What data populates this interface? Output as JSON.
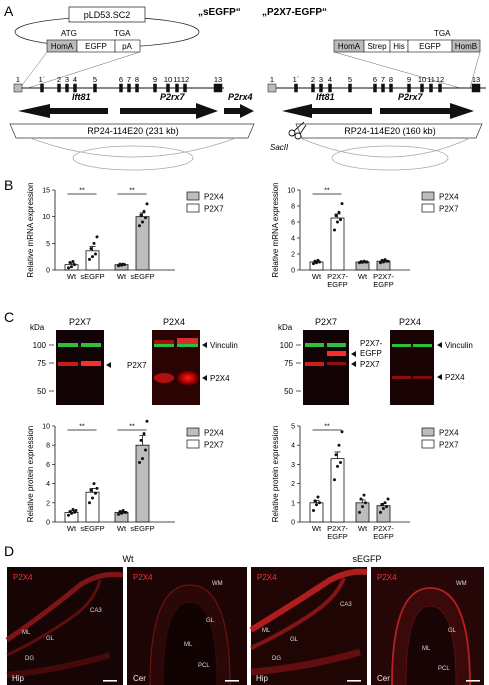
{
  "panels": {
    "A": "A",
    "B": "B",
    "C": "C",
    "D": "D"
  },
  "panelA": {
    "left": {
      "title": "„sEGFP“",
      "plasmid": "pLD53.SC2",
      "atg": "ATG",
      "tga": "TGA",
      "cassette": [
        "HomA",
        "EGFP",
        "pA"
      ],
      "exons": [
        "1",
        "1´",
        "2",
        "3",
        "4",
        "5",
        "6",
        "7",
        "8",
        "9",
        "10",
        "11",
        "12",
        "13"
      ],
      "genes": [
        "Ift81",
        "P2rx7",
        "P2rx4"
      ],
      "bac": "RP24-114E20 (231 kb)"
    },
    "right": {
      "title": "„P2X7-EGFP“",
      "tga": "TGA",
      "cassette": [
        "HomA",
        "Strep",
        "His",
        "EGFP",
        "HomB"
      ],
      "exons": [
        "1",
        "1´",
        "2",
        "3",
        "4",
        "5",
        "6",
        "7",
        "8",
        "9",
        "10",
        "11",
        "12",
        "13"
      ],
      "genes": [
        "Ift81",
        "P2rx7"
      ],
      "enzyme": "SacII",
      "bac": "RP24-114E20 (160 kb)"
    }
  },
  "panelB": {
    "left": {
      "ylabel": "Relative mRNA  expression",
      "yticks": [
        "0",
        "5",
        "10",
        "15"
      ],
      "legend": [
        "P2X4",
        "P2X7"
      ],
      "xlabels": [
        "Wt",
        "sEGFP",
        "Wt",
        "sEGFP"
      ],
      "sig": [
        "**",
        "**"
      ]
    },
    "right": {
      "ylabel": "Relative mRNA  expression",
      "yticks": [
        "0",
        "2",
        "4",
        "6",
        "8",
        "10"
      ],
      "legend": [
        "P2X4",
        "P2X7"
      ],
      "xlabels": [
        "Wt",
        "P2X7-\nEGFP",
        "Wt",
        "P2X7-\nEGFP"
      ],
      "sig": [
        "**"
      ]
    }
  },
  "panelC": {
    "blots_left": {
      "kda": "kDa",
      "markers": [
        "100",
        "75",
        "50"
      ],
      "titles": [
        "P2X7",
        "P2X4"
      ],
      "bands": [
        "Vinculin",
        "P2X7",
        "P2X4"
      ]
    },
    "blots_right": {
      "kda": "kDa",
      "markers": [
        "100",
        "75",
        "50"
      ],
      "titles": [
        "P2X7",
        "P2X4"
      ],
      "bands": [
        "Vinculin",
        "P2X7-EGFP",
        "P2X7",
        "P2X4"
      ]
    },
    "left": {
      "ylabel": "Relative protein expression",
      "yticks": [
        "0",
        "2",
        "4",
        "6",
        "8",
        "10"
      ],
      "legend": [
        "P2X4",
        "P2X7"
      ],
      "xlabels": [
        "Wt",
        "sEGFP",
        "Wt",
        "sEGFP"
      ],
      "sig": [
        "**",
        "**"
      ]
    },
    "right": {
      "ylabel": "Relative protein expression",
      "yticks": [
        "0",
        "1",
        "2",
        "3",
        "4",
        "5"
      ],
      "legend": [
        "P2X4",
        "P2X7"
      ],
      "xlabels": [
        "Wt",
        "P2X7-\nEGFP",
        "Wt",
        "P2X7-\nEGFP"
      ],
      "sig": [
        "**"
      ]
    }
  },
  "panelD": {
    "group_left": "Wt",
    "group_right": "sEGFP",
    "images": [
      {
        "stain": "P2X4",
        "region": "Hip",
        "labels": [
          "CA3",
          "ML",
          "GL",
          "DG"
        ]
      },
      {
        "stain": "P2X4",
        "region": "Cer",
        "labels": [
          "WM",
          "GL",
          "ML",
          "PCL"
        ]
      },
      {
        "stain": "P2X4",
        "region": "Hip",
        "labels": [
          "CA3",
          "ML",
          "GL",
          "DG"
        ]
      },
      {
        "stain": "P2X4",
        "region": "Cer",
        "labels": [
          "WM",
          "GL",
          "ML",
          "PCL"
        ]
      }
    ]
  },
  "chart_data": [
    {
      "type": "bar",
      "title": "",
      "ylabel": "Relative mRNA  expression",
      "ylim": [
        0,
        15
      ],
      "categories": [
        "Wt",
        "sEGFP",
        "Wt",
        "sEGFP"
      ],
      "groups": [
        "P2X7",
        "P2X7",
        "P2X4",
        "P2X4"
      ],
      "values": [
        1.0,
        3.6,
        1.0,
        10.0
      ],
      "errors": [
        0.3,
        0.8,
        0.1,
        0.7
      ],
      "points": [
        [
          0.4,
          0.6,
          1.0,
          1.4,
          1.6
        ],
        [
          2.0,
          2.5,
          3.0,
          4.0,
          5.0,
          6.2
        ],
        [
          0.8,
          0.9,
          1.0,
          1.1,
          1.1
        ],
        [
          8.3,
          9.0,
          9.8,
          10.3,
          11.0,
          12.4
        ]
      ]
    },
    {
      "type": "bar",
      "title": "",
      "ylabel": "Relative mRNA  expression",
      "ylim": [
        0,
        10
      ],
      "categories": [
        "Wt",
        "P2X7-EGFP",
        "Wt",
        "P2X7-EGFP"
      ],
      "groups": [
        "P2X7",
        "P2X7",
        "P2X4",
        "P2X4"
      ],
      "values": [
        1.0,
        6.5,
        1.0,
        1.1
      ],
      "errors": [
        0.15,
        0.5,
        0.08,
        0.1
      ],
      "points": [
        [
          0.8,
          0.9,
          1.0,
          1.1,
          1.2
        ],
        [
          5.0,
          6.0,
          6.3,
          6.8,
          7.2,
          8.3
        ],
        [
          0.9,
          0.95,
          1.0,
          1.05,
          1.1,
          1.0
        ],
        [
          0.9,
          1.0,
          1.1,
          1.2,
          1.3,
          1.1
        ]
      ]
    },
    {
      "type": "bar",
      "title": "",
      "ylabel": "Relative protein expression",
      "ylim": [
        0,
        10
      ],
      "categories": [
        "Wt",
        "sEGFP",
        "Wt",
        "sEGFP"
      ],
      "groups": [
        "P2X7",
        "P2X7",
        "P2X4",
        "P2X4"
      ],
      "values": [
        1.0,
        3.1,
        1.0,
        8.0
      ],
      "errors": [
        0.15,
        0.4,
        0.1,
        1.0
      ],
      "points": [
        [
          0.7,
          0.9,
          1.0,
          1.1,
          1.3,
          1.2
        ],
        [
          2.0,
          2.5,
          3.0,
          3.3,
          4.0,
          3.5
        ],
        [
          0.8,
          0.9,
          1.0,
          1.1,
          1.2,
          1.0
        ],
        [
          6.2,
          6.6,
          7.5,
          8.5,
          9.2,
          10.5
        ]
      ]
    },
    {
      "type": "bar",
      "title": "",
      "ylabel": "Relative protein expression",
      "ylim": [
        0,
        5
      ],
      "categories": [
        "Wt",
        "P2X7-EGFP",
        "Wt",
        "P2X7-EGFP"
      ],
      "groups": [
        "P2X7",
        "P2X7",
        "P2X4",
        "P2X4"
      ],
      "values": [
        1.0,
        3.3,
        1.0,
        0.85
      ],
      "errors": [
        0.12,
        0.35,
        0.15,
        0.12
      ],
      "points": [
        [
          0.6,
          0.9,
          1.0,
          1.1,
          1.3
        ],
        [
          2.2,
          2.9,
          3.1,
          3.5,
          4.0,
          4.7
        ],
        [
          0.5,
          0.8,
          1.0,
          1.2,
          1.4
        ],
        [
          0.5,
          0.7,
          0.8,
          0.9,
          1.0,
          1.2
        ]
      ]
    }
  ]
}
